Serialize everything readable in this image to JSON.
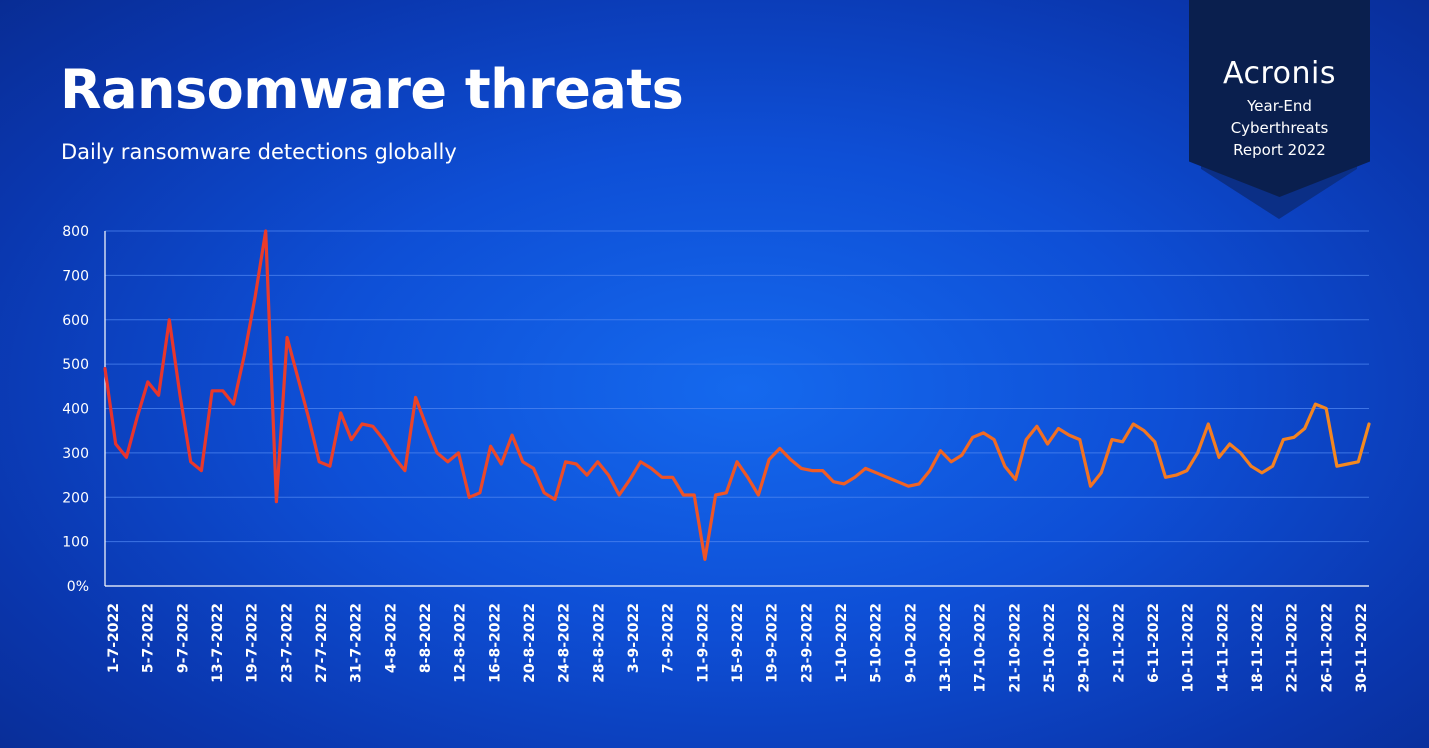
{
  "header": {
    "title": "Ransomware threats",
    "subtitle": "Daily ransomware detections globally"
  },
  "badge": {
    "brand": "Acronis",
    "line1": "Year-End",
    "line2": "Cyberthreats",
    "line3": "Report 2022"
  },
  "colors": {
    "series_start": "#e8322c",
    "series_end": "#f58a1f",
    "gridline": "#4f86f0",
    "badge_bg": "#0a1f4e"
  },
  "chart_data": {
    "type": "line",
    "title": "Ransomware threats",
    "subtitle": "Daily ransomware detections globally",
    "xlabel": "",
    "ylabel": "",
    "ylim": [
      0,
      800
    ],
    "yticks": [
      0,
      100,
      200,
      300,
      400,
      500,
      600,
      700,
      800
    ],
    "ytick_labels": [
      "0%",
      "100",
      "200",
      "300",
      "400",
      "500",
      "600",
      "700",
      "800"
    ],
    "grid": true,
    "legend": "none",
    "color_gradient": [
      "#e8322c",
      "#f58a1f"
    ],
    "xtick_labels": [
      "1-7-2022",
      "5-7-2022",
      "9-7-2022",
      "13-7-2022",
      "19-7-2022",
      "23-7-2022",
      "27-7-2022",
      "31-7-2022",
      "4-8-2022",
      "8-8-2022",
      "12-8-2022",
      "16-8-2022",
      "20-8-2022",
      "24-8-2022",
      "28-8-2022",
      "3-9-2022",
      "7-9-2022",
      "11-9-2022",
      "15-9-2022",
      "19-9-2022",
      "23-9-2022",
      "1-10-2022",
      "5-10-2022",
      "9-10-2022",
      "13-10-2022",
      "17-10-2022",
      "21-10-2022",
      "25-10-2022",
      "29-10-2022",
      "2-11-2022",
      "6-11-2022",
      "10-11-2022",
      "14-11-2022",
      "18-11-2022",
      "22-11-2022",
      "26-11-2022",
      "30-11-2022"
    ],
    "series": [
      {
        "values": [
          490,
          320,
          290,
          380,
          460,
          430,
          600,
          430,
          280,
          260,
          440,
          440,
          410,
          520,
          650,
          800,
          190,
          560,
          470,
          380,
          280,
          270,
          390,
          330,
          365,
          360,
          330,
          290,
          260,
          425,
          360,
          300,
          280,
          300,
          200,
          210,
          315,
          275,
          340,
          280,
          265,
          210,
          195,
          280,
          275,
          250,
          280,
          250,
          205,
          240,
          280,
          265,
          245,
          245,
          205,
          205,
          60,
          205,
          210,
          280,
          245,
          205,
          285,
          310,
          285,
          265,
          260,
          260,
          235,
          230,
          245,
          265,
          255,
          245,
          235,
          225,
          230,
          260,
          305,
          280,
          295,
          335,
          345,
          330,
          270,
          240,
          330,
          360,
          320,
          355,
          340,
          330,
          225,
          255,
          330,
          325,
          365,
          350,
          325,
          245,
          250,
          260,
          300,
          365,
          290,
          320,
          300,
          270,
          255,
          270,
          330,
          335,
          355,
          410,
          400,
          270,
          275,
          280,
          365
        ]
      }
    ]
  }
}
